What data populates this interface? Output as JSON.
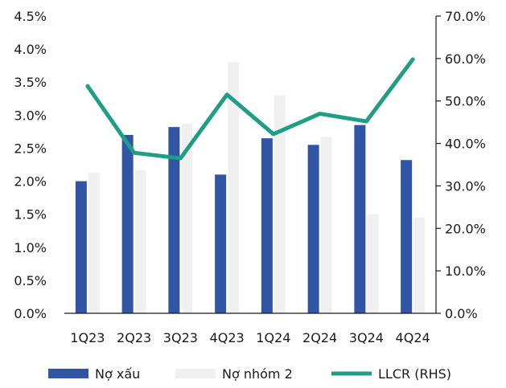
{
  "chart_data": {
    "type": "bar",
    "categories": [
      "1Q23",
      "2Q23",
      "3Q23",
      "4Q23",
      "1Q24",
      "2Q24",
      "3Q24",
      "4Q24"
    ],
    "series": [
      {
        "name": "Nợ xấu",
        "kind": "bar",
        "axis": "left",
        "color": "#2f55a4",
        "values": [
          2.0,
          2.7,
          2.82,
          2.1,
          2.65,
          2.55,
          2.85,
          2.32
        ]
      },
      {
        "name": "Nợ nhóm 2",
        "kind": "bar",
        "axis": "left",
        "color": "#f0f0f0",
        "values": [
          2.13,
          2.17,
          2.87,
          3.8,
          3.3,
          2.67,
          1.5,
          1.45
        ]
      },
      {
        "name": "LLCR (RHS)",
        "kind": "line",
        "axis": "right",
        "color": "#1f9e83",
        "values": [
          53.5,
          37.8,
          36.5,
          51.5,
          42.2,
          47.0,
          45.2,
          59.8
        ]
      }
    ],
    "y_left": {
      "ylim": [
        0,
        4.5
      ],
      "ticks": [
        "0.0%",
        "0.5%",
        "1.0%",
        "1.5%",
        "2.0%",
        "2.5%",
        "3.0%",
        "3.5%",
        "4.0%",
        "4.5%"
      ]
    },
    "y_right": {
      "ylim": [
        0,
        70
      ],
      "ticks": [
        "0.0%",
        "10.0%",
        "20.0%",
        "30.0%",
        "40.0%",
        "50.0%",
        "60.0%",
        "70.0%"
      ]
    },
    "grid": false,
    "legend_position": "bottom"
  }
}
